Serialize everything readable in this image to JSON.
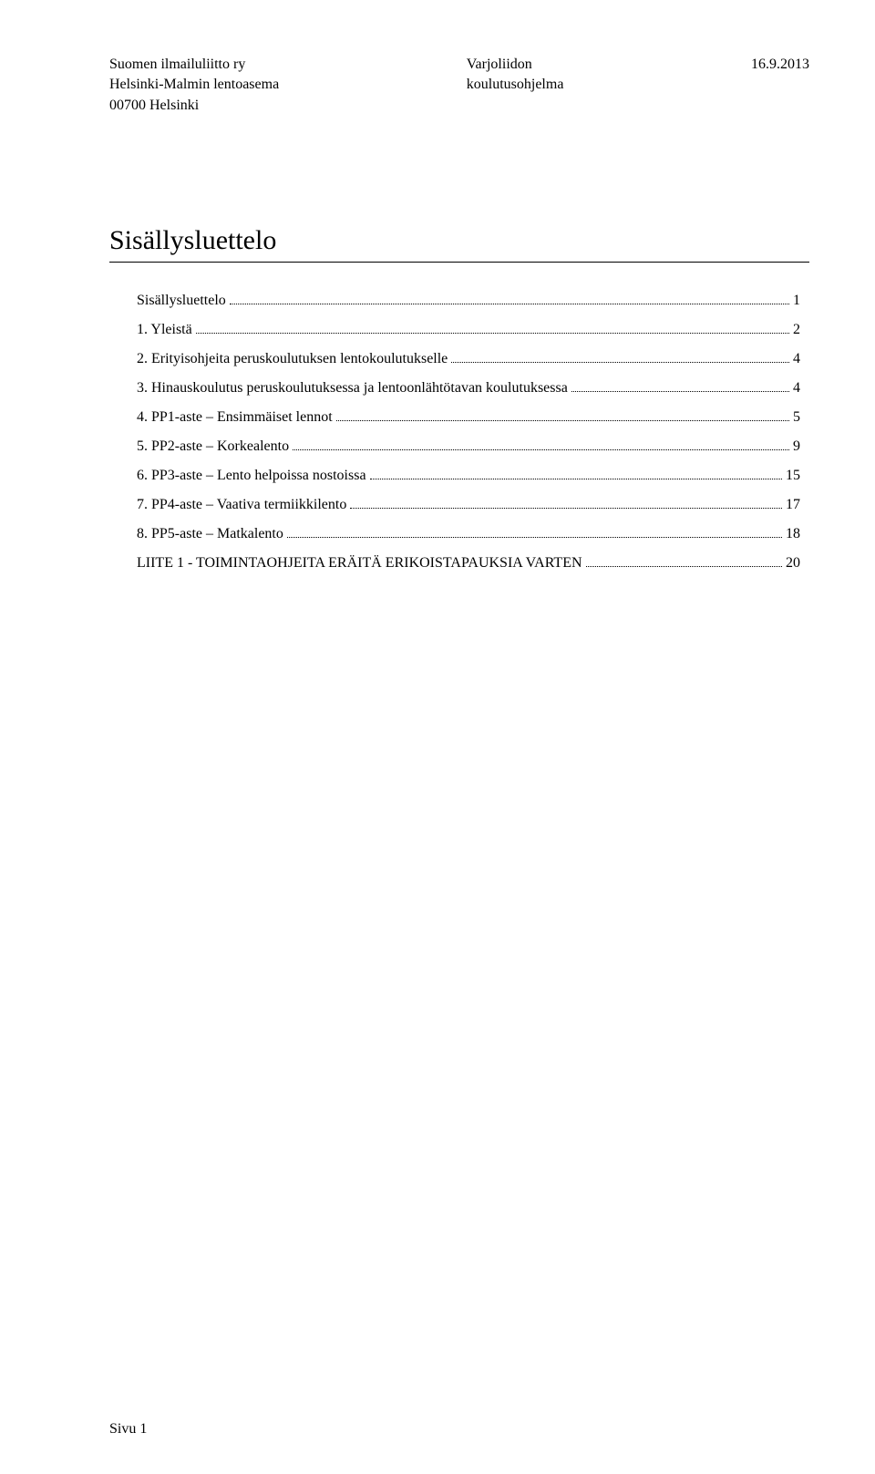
{
  "header": {
    "left": [
      "Suomen ilmailuliitto ry",
      "Helsinki-Malmin lentoasema",
      "00700 Helsinki"
    ],
    "center": [
      "Varjoliidon",
      "koulutusohjelma"
    ],
    "right": [
      "16.9.2013"
    ]
  },
  "title": "Sisällysluettelo",
  "toc": [
    {
      "label": "Sisällysluettelo",
      "page": "1"
    },
    {
      "label": "1. Yleistä",
      "page": "2"
    },
    {
      "label": "2. Erityisohjeita peruskoulutuksen lentokoulutukselle",
      "page": "4"
    },
    {
      "label": "3. Hinauskoulutus peruskoulutuksessa ja lentoonlähtötavan koulutuksessa",
      "page": "4"
    },
    {
      "label": "4. PP1-aste – Ensimmäiset lennot",
      "page": "5"
    },
    {
      "label": "5. PP2-aste  – Korkealento",
      "page": "9"
    },
    {
      "label": "6. PP3-aste – Lento helpoissa nostoissa",
      "page": "15"
    },
    {
      "label": "7. PP4-aste – Vaativa termiikkilento",
      "page": "17"
    },
    {
      "label": "8. PP5-aste – Matkalento",
      "page": "18"
    },
    {
      "label": "LIITE 1 - TOIMINTAOHJEITA ERÄITÄ ERIKOISTAPAUKSIA VARTEN",
      "page": "20"
    }
  ],
  "footer": "Sivu 1",
  "colors": {
    "text": "#000000",
    "background": "#ffffff",
    "rule": "#000000",
    "leader": "#000000"
  },
  "typography": {
    "body_family": "Georgia, Times New Roman, serif",
    "body_size_pt": 12,
    "title_size_pt": 22
  }
}
